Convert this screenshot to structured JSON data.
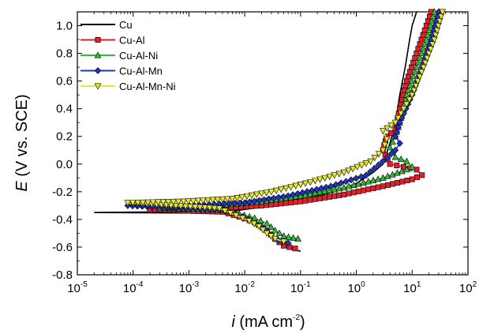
{
  "chart_data": {
    "type": "line",
    "x_scale": "log",
    "xlim": [
      1e-05,
      100
    ],
    "ylim": [
      -0.8,
      1.1
    ],
    "x_ticks": [
      {
        "value": 1e-05,
        "base": "10",
        "exp": "-5"
      },
      {
        "value": 0.0001,
        "base": "10",
        "exp": "-4"
      },
      {
        "value": 0.001,
        "base": "10",
        "exp": "-3"
      },
      {
        "value": 0.01,
        "base": "10",
        "exp": "-2"
      },
      {
        "value": 0.1,
        "base": "10",
        "exp": "-1"
      },
      {
        "value": 1,
        "base": "10",
        "exp": "0"
      },
      {
        "value": 10,
        "base": "10",
        "exp": "1"
      },
      {
        "value": 100,
        "base": "10",
        "exp": "2"
      }
    ],
    "y_ticks": [
      "1.0",
      "0.8",
      "0.6",
      "0.4",
      "0.2",
      "0.0",
      "-0.2",
      "-0.4",
      "-0.6",
      "-0.8"
    ],
    "xlabel": {
      "var": "i",
      "unit": " (mA cm",
      "exp": "-2",
      "close": ")"
    },
    "ylabel": {
      "var": "E",
      "rest": " (V vs. SCE)"
    },
    "grid": false,
    "legend_position": "top-left",
    "series": [
      {
        "name": "Cu",
        "color": "#000000",
        "marker": "none",
        "points": [
          [
            0.1,
            -0.63
          ],
          [
            0.06,
            -0.61
          ],
          [
            0.04,
            -0.57
          ],
          [
            0.03,
            -0.52
          ],
          [
            0.02,
            -0.46
          ],
          [
            0.012,
            -0.41
          ],
          [
            0.007,
            -0.375
          ],
          [
            0.004,
            -0.355
          ],
          [
            2e-05,
            -0.35
          ],
          [
            0.006,
            -0.34
          ],
          [
            0.03,
            -0.3
          ],
          [
            0.1,
            -0.26
          ],
          [
            0.4,
            -0.2
          ],
          [
            1,
            -0.14
          ],
          [
            2,
            -0.06
          ],
          [
            3,
            0.0
          ],
          [
            4,
            0.15
          ],
          [
            5,
            0.3
          ],
          [
            6,
            0.5
          ],
          [
            7.5,
            0.7
          ],
          [
            9,
            0.9
          ],
          [
            10,
            1.0
          ],
          [
            12,
            1.1
          ]
        ]
      },
      {
        "name": "Cu-Al",
        "color": "#e0202a",
        "marker": "square",
        "points": [
          [
            0.08,
            -0.61
          ],
          [
            0.05,
            -0.59
          ],
          [
            0.035,
            -0.54
          ],
          [
            0.025,
            -0.48
          ],
          [
            0.015,
            -0.42
          ],
          [
            0.008,
            -0.38
          ],
          [
            0.004,
            -0.345
          ],
          [
            0.0002,
            -0.33
          ],
          [
            0.003,
            -0.32
          ],
          [
            0.02,
            -0.3
          ],
          [
            0.1,
            -0.27
          ],
          [
            0.6,
            -0.22
          ],
          [
            3,
            -0.16
          ],
          [
            10,
            -0.11
          ],
          [
            15,
            -0.08
          ],
          [
            12,
            -0.04
          ],
          [
            7,
            -0.02
          ],
          [
            4,
            0.0
          ],
          [
            3,
            0.1
          ],
          [
            3.5,
            0.2
          ],
          [
            5,
            0.25
          ],
          [
            6,
            0.4
          ],
          [
            8,
            0.6
          ],
          [
            12,
            0.8
          ],
          [
            18,
            1.0
          ],
          [
            22,
            1.1
          ]
        ]
      },
      {
        "name": "Cu-Al-Ni",
        "color": "#33bb33",
        "marker": "triangle-up",
        "points": [
          [
            0.09,
            -0.54
          ],
          [
            0.05,
            -0.52
          ],
          [
            0.035,
            -0.48
          ],
          [
            0.025,
            -0.43
          ],
          [
            0.015,
            -0.39
          ],
          [
            0.008,
            -0.36
          ],
          [
            0.004,
            -0.33
          ],
          [
            0.0003,
            -0.315
          ],
          [
            0.003,
            -0.3
          ],
          [
            0.02,
            -0.27
          ],
          [
            0.1,
            -0.23
          ],
          [
            0.6,
            -0.17
          ],
          [
            3,
            -0.1
          ],
          [
            8,
            -0.04
          ],
          [
            10,
            -0.02
          ],
          [
            8,
            0.02
          ],
          [
            5,
            0.05
          ],
          [
            4,
            0.12
          ],
          [
            5,
            0.2
          ],
          [
            6,
            0.3
          ],
          [
            8,
            0.5
          ],
          [
            12,
            0.7
          ],
          [
            18,
            0.9
          ],
          [
            25,
            1.1
          ]
        ]
      },
      {
        "name": "Cu-Al-Mn",
        "color": "#2233bb",
        "marker": "diamond",
        "points": [
          [
            0.06,
            -0.57
          ],
          [
            0.04,
            -0.55
          ],
          [
            0.03,
            -0.51
          ],
          [
            0.02,
            -0.45
          ],
          [
            0.012,
            -0.4
          ],
          [
            0.007,
            -0.36
          ],
          [
            0.0035,
            -0.33
          ],
          [
            8e-05,
            -0.3
          ],
          [
            0.001,
            -0.3
          ],
          [
            0.01,
            -0.28
          ],
          [
            0.06,
            -0.23
          ],
          [
            0.35,
            -0.16
          ],
          [
            1.5,
            -0.08
          ],
          [
            3,
            0.02
          ],
          [
            5,
            0.1
          ],
          [
            6,
            0.15
          ],
          [
            5,
            0.2
          ],
          [
            6,
            0.3
          ],
          [
            10,
            0.5
          ],
          [
            15,
            0.7
          ],
          [
            22,
            0.9
          ],
          [
            30,
            1.1
          ]
        ]
      },
      {
        "name": "Cu-Al-Mn-Ni",
        "color": "#e8e830",
        "marker": "triangle-down",
        "points": [
          [
            0.05,
            -0.56
          ],
          [
            0.035,
            -0.54
          ],
          [
            0.025,
            -0.5
          ],
          [
            0.018,
            -0.45
          ],
          [
            0.012,
            -0.41
          ],
          [
            0.007,
            -0.37
          ],
          [
            0.0035,
            -0.32
          ],
          [
            8e-05,
            -0.28
          ],
          [
            0.0008,
            -0.27
          ],
          [
            0.006,
            -0.25
          ],
          [
            0.03,
            -0.2
          ],
          [
            0.15,
            -0.13
          ],
          [
            0.6,
            -0.06
          ],
          [
            1.8,
            0.02
          ],
          [
            3,
            0.1
          ],
          [
            3.5,
            0.18
          ],
          [
            3,
            0.24
          ],
          [
            5,
            0.3
          ],
          [
            10,
            0.5
          ],
          [
            16,
            0.7
          ],
          [
            25,
            0.9
          ],
          [
            35,
            1.1
          ]
        ]
      }
    ]
  }
}
